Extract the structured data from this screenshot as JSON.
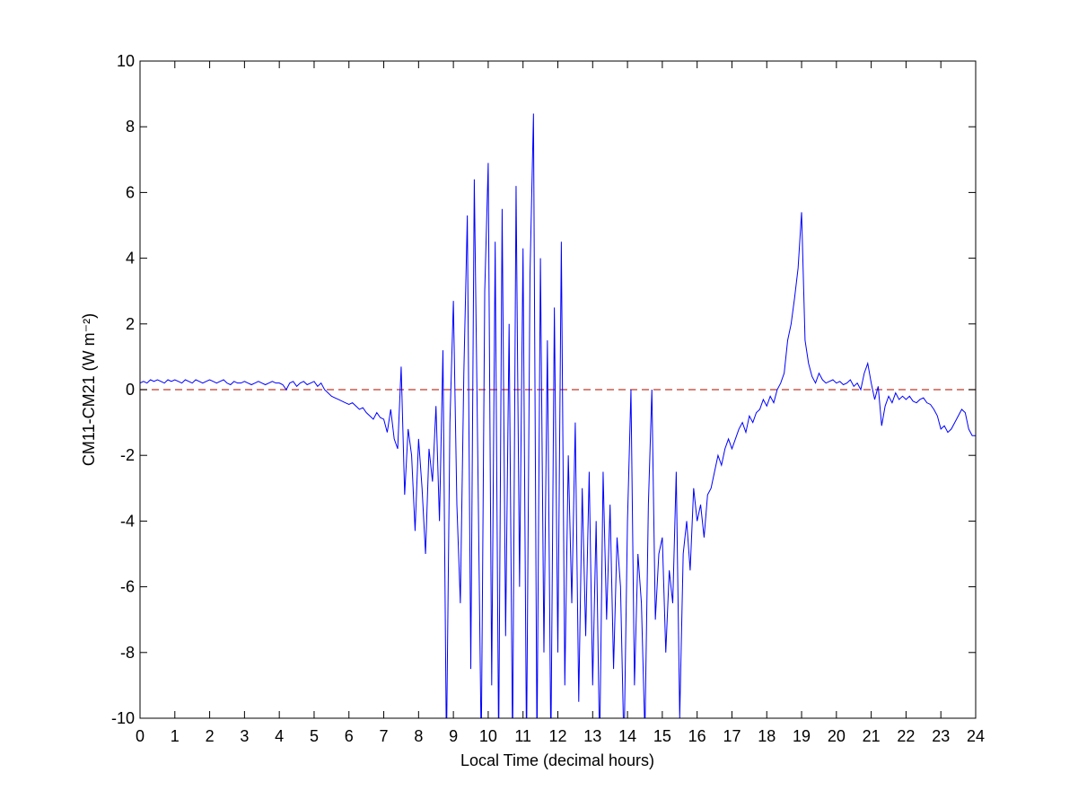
{
  "chart_data": {
    "type": "line",
    "xlabel": "Local Time (decimal hours)",
    "ylabel": "CM11-CM21 (W m⁻²)",
    "xlim": [
      0,
      24
    ],
    "ylim": [
      -10,
      10
    ],
    "xticks": [
      0,
      1,
      2,
      3,
      4,
      5,
      6,
      7,
      8,
      9,
      10,
      11,
      12,
      13,
      14,
      15,
      16,
      17,
      18,
      19,
      20,
      21,
      22,
      23,
      24
    ],
    "yticks": [
      -10,
      -8,
      -6,
      -4,
      -2,
      0,
      2,
      4,
      6,
      8,
      10
    ],
    "reference_line": {
      "value": 0,
      "color": "#c0392b"
    },
    "x": [
      0,
      0.1,
      0.2,
      0.3,
      0.4,
      0.5,
      0.6,
      0.7,
      0.8,
      0.9,
      1,
      1.1,
      1.2,
      1.3,
      1.4,
      1.5,
      1.6,
      1.7,
      1.8,
      1.9,
      2,
      2.1,
      2.2,
      2.3,
      2.4,
      2.5,
      2.6,
      2.7,
      2.8,
      2.9,
      3,
      3.1,
      3.2,
      3.3,
      3.4,
      3.5,
      3.6,
      3.7,
      3.8,
      3.9,
      4,
      4.1,
      4.2,
      4.3,
      4.4,
      4.5,
      4.6,
      4.7,
      4.8,
      4.9,
      5,
      5.1,
      5.2,
      5.3,
      5.4,
      5.5,
      5.6,
      5.7,
      5.8,
      5.9,
      6,
      6.1,
      6.2,
      6.3,
      6.4,
      6.5,
      6.6,
      6.7,
      6.8,
      6.9,
      7,
      7.1,
      7.2,
      7.3,
      7.4,
      7.5,
      7.6,
      7.7,
      7.8,
      7.9,
      8,
      8.1,
      8.2,
      8.3,
      8.4,
      8.5,
      8.6,
      8.7,
      8.8,
      8.9,
      9,
      9.1,
      9.2,
      9.3,
      9.4,
      9.5,
      9.6,
      9.7,
      9.8,
      9.9,
      10,
      10.1,
      10.2,
      10.3,
      10.4,
      10.5,
      10.6,
      10.7,
      10.8,
      10.9,
      11,
      11.1,
      11.2,
      11.3,
      11.4,
      11.5,
      11.6,
      11.7,
      11.8,
      11.9,
      12,
      12.1,
      12.2,
      12.3,
      12.4,
      12.5,
      12.6,
      12.7,
      12.8,
      12.9,
      13,
      13.1,
      13.2,
      13.3,
      13.4,
      13.5,
      13.6,
      13.7,
      13.8,
      13.9,
      14,
      14.1,
      14.2,
      14.3,
      14.4,
      14.5,
      14.6,
      14.7,
      14.8,
      14.9,
      15,
      15.1,
      15.2,
      15.3,
      15.4,
      15.5,
      15.6,
      15.7,
      15.8,
      15.9,
      16,
      16.1,
      16.2,
      16.3,
      16.4,
      16.5,
      16.6,
      16.7,
      16.8,
      16.9,
      17,
      17.1,
      17.2,
      17.3,
      17.4,
      17.5,
      17.6,
      17.7,
      17.8,
      17.9,
      18,
      18.1,
      18.2,
      18.3,
      18.4,
      18.5,
      18.6,
      18.7,
      18.8,
      18.9,
      19,
      19.1,
      19.2,
      19.3,
      19.4,
      19.5,
      19.6,
      19.7,
      19.8,
      19.9,
      20,
      20.1,
      20.2,
      20.3,
      20.4,
      20.5,
      20.6,
      20.7,
      20.8,
      20.9,
      21,
      21.1,
      21.2,
      21.3,
      21.4,
      21.5,
      21.6,
      21.7,
      21.8,
      21.9,
      22,
      22.1,
      22.2,
      22.3,
      22.4,
      22.5,
      22.6,
      22.7,
      22.8,
      22.9,
      23,
      23.1,
      23.2,
      23.3,
      23.4,
      23.5,
      23.6,
      23.7,
      23.8,
      23.9,
      24
    ],
    "series": [
      {
        "color": "#0000ff",
        "values": [
          0.2,
          0.25,
          0.2,
          0.3,
          0.25,
          0.3,
          0.25,
          0.2,
          0.3,
          0.25,
          0.3,
          0.25,
          0.2,
          0.3,
          0.25,
          0.2,
          0.3,
          0.25,
          0.2,
          0.25,
          0.3,
          0.25,
          0.2,
          0.25,
          0.3,
          0.2,
          0.15,
          0.25,
          0.2,
          0.2,
          0.25,
          0.2,
          0.15,
          0.2,
          0.25,
          0.2,
          0.15,
          0.2,
          0.25,
          0.2,
          0.2,
          0.15,
          0.0,
          0.2,
          0.25,
          0.1,
          0.2,
          0.25,
          0.15,
          0.2,
          0.25,
          0.1,
          0.2,
          0.0,
          -0.1,
          -0.2,
          -0.25,
          -0.3,
          -0.35,
          -0.4,
          -0.45,
          -0.4,
          -0.5,
          -0.6,
          -0.55,
          -0.7,
          -0.8,
          -0.9,
          -0.7,
          -0.85,
          -0.9,
          -1.3,
          -0.6,
          -1.5,
          -1.8,
          0.7,
          -3.2,
          -1.2,
          -2.0,
          -4.3,
          -1.5,
          -3.0,
          -5.0,
          -1.8,
          -2.8,
          -0.5,
          -4.0,
          1.2,
          -11,
          -1.0,
          2.7,
          -3.5,
          -6.5,
          0.5,
          5.3,
          -8.5,
          6.4,
          -2.0,
          -11,
          3.0,
          6.9,
          -9.0,
          4.5,
          -11,
          5.5,
          -7.5,
          2.0,
          -11,
          6.2,
          -6.0,
          4.3,
          -11,
          3.5,
          8.4,
          -11,
          4.0,
          -8.0,
          1.5,
          -11,
          2.5,
          -8.0,
          4.5,
          -9.0,
          -2.0,
          -6.5,
          -1.0,
          -9.5,
          -3.0,
          -7.5,
          -2.5,
          -9.0,
          -4.0,
          -11,
          -2.5,
          -7.0,
          -3.5,
          -8.5,
          -4.5,
          -6.0,
          -11,
          -4.0,
          0.0,
          -9.0,
          -5.0,
          -6.5,
          -10.5,
          -3.5,
          0.0,
          -7.0,
          -5.0,
          -4.5,
          -8.0,
          -5.5,
          -6.5,
          -2.5,
          -10.0,
          -5.0,
          -4.0,
          -5.5,
          -3.0,
          -4.0,
          -3.5,
          -4.5,
          -3.2,
          -3.0,
          -2.5,
          -2.0,
          -2.3,
          -1.8,
          -1.5,
          -1.8,
          -1.5,
          -1.2,
          -1.0,
          -1.3,
          -0.8,
          -1.0,
          -0.7,
          -0.6,
          -0.3,
          -0.5,
          -0.2,
          -0.4,
          0.0,
          0.2,
          0.5,
          1.5,
          2.0,
          2.8,
          3.7,
          5.4,
          1.5,
          0.8,
          0.4,
          0.2,
          0.5,
          0.3,
          0.2,
          0.25,
          0.3,
          0.2,
          0.25,
          0.15,
          0.2,
          0.3,
          0.1,
          0.2,
          0.0,
          0.5,
          0.8,
          0.2,
          -0.3,
          0.1,
          -1.1,
          -0.5,
          -0.2,
          -0.4,
          -0.1,
          -0.3,
          -0.2,
          -0.3,
          -0.2,
          -0.35,
          -0.4,
          -0.3,
          -0.25,
          -0.4,
          -0.45,
          -0.6,
          -0.8,
          -1.2,
          -1.1,
          -1.3,
          -1.2,
          -1.0,
          -0.8,
          -0.6,
          -0.7,
          -1.2,
          -1.4,
          -1.4
        ]
      }
    ]
  }
}
